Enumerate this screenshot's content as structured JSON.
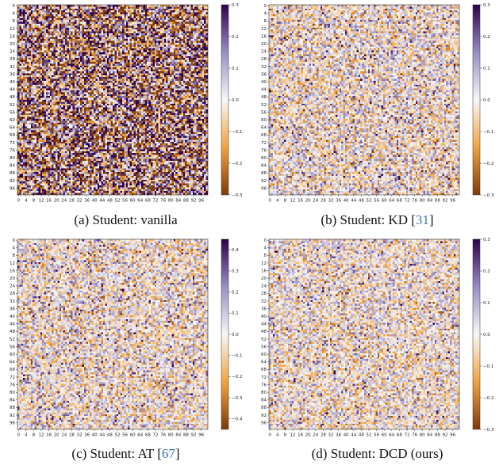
{
  "colors": {
    "low": "#7f3b08",
    "mid_low": "#f1a340",
    "zero": "#f7f7f7",
    "mid_high": "#998ec3",
    "high": "#2d004b"
  },
  "tick_labels": [
    "0",
    "4",
    "8",
    "12",
    "16",
    "20",
    "24",
    "28",
    "32",
    "36",
    "40",
    "44",
    "48",
    "52",
    "56",
    "60",
    "64",
    "68",
    "72",
    "76",
    "80",
    "84",
    "88",
    "92",
    "96"
  ],
  "chart_data": [
    {
      "type": "heatmap",
      "caption_prefix": "(a) Student: vanilla",
      "caption_ref": "",
      "caption_suffix": "",
      "rows": 100,
      "cols": 100,
      "colorbar_ticks": [
        0.3,
        0.2,
        0.1,
        0.0,
        -0.1,
        -0.2,
        -0.3
      ],
      "colorbar_tick_labels": [
        "0.3",
        "0.2",
        "0.1",
        "0.0",
        "−0.1",
        "−0.2",
        "−0.3"
      ],
      "vlim": [
        -0.3,
        0.3
      ],
      "value_spread": 0.28
    },
    {
      "type": "heatmap",
      "caption_prefix": "(b) Student: KD [",
      "caption_ref": "31",
      "caption_suffix": "]",
      "rows": 100,
      "cols": 100,
      "colorbar_ticks": [
        0.3,
        0.2,
        0.1,
        0.0,
        -0.1,
        -0.2,
        -0.3
      ],
      "colorbar_tick_labels": [
        "0.3",
        "0.2",
        "0.1",
        "0.0",
        "−0.1",
        "−0.2",
        "−0.3"
      ],
      "vlim": [
        -0.3,
        0.3
      ],
      "value_spread": 0.11
    },
    {
      "type": "heatmap",
      "caption_prefix": "(c) Student: AT [",
      "caption_ref": "67",
      "caption_suffix": "]",
      "rows": 100,
      "cols": 100,
      "colorbar_ticks": [
        0.4,
        0.3,
        0.2,
        0.1,
        0.0,
        -0.1,
        -0.2,
        -0.3,
        -0.4
      ],
      "colorbar_tick_labels": [
        "0.4",
        "0.3",
        "0.2",
        "0.1",
        "0.0",
        "−0.1",
        "−0.2",
        "−0.3",
        "−0.4"
      ],
      "vlim": [
        -0.45,
        0.45
      ],
      "value_spread": 0.16
    },
    {
      "type": "heatmap",
      "caption_prefix": "(d) Student: DCD (ours)",
      "caption_ref": "",
      "caption_suffix": "",
      "rows": 100,
      "cols": 100,
      "colorbar_ticks": [
        0.3,
        0.2,
        0.1,
        0.0,
        -0.1,
        -0.2,
        -0.3
      ],
      "colorbar_tick_labels": [
        "0.3",
        "0.2",
        "0.1",
        "0.0",
        "−0.1",
        "−0.2",
        "−0.3"
      ],
      "vlim": [
        -0.3,
        0.3
      ],
      "value_spread": 0.1
    }
  ]
}
